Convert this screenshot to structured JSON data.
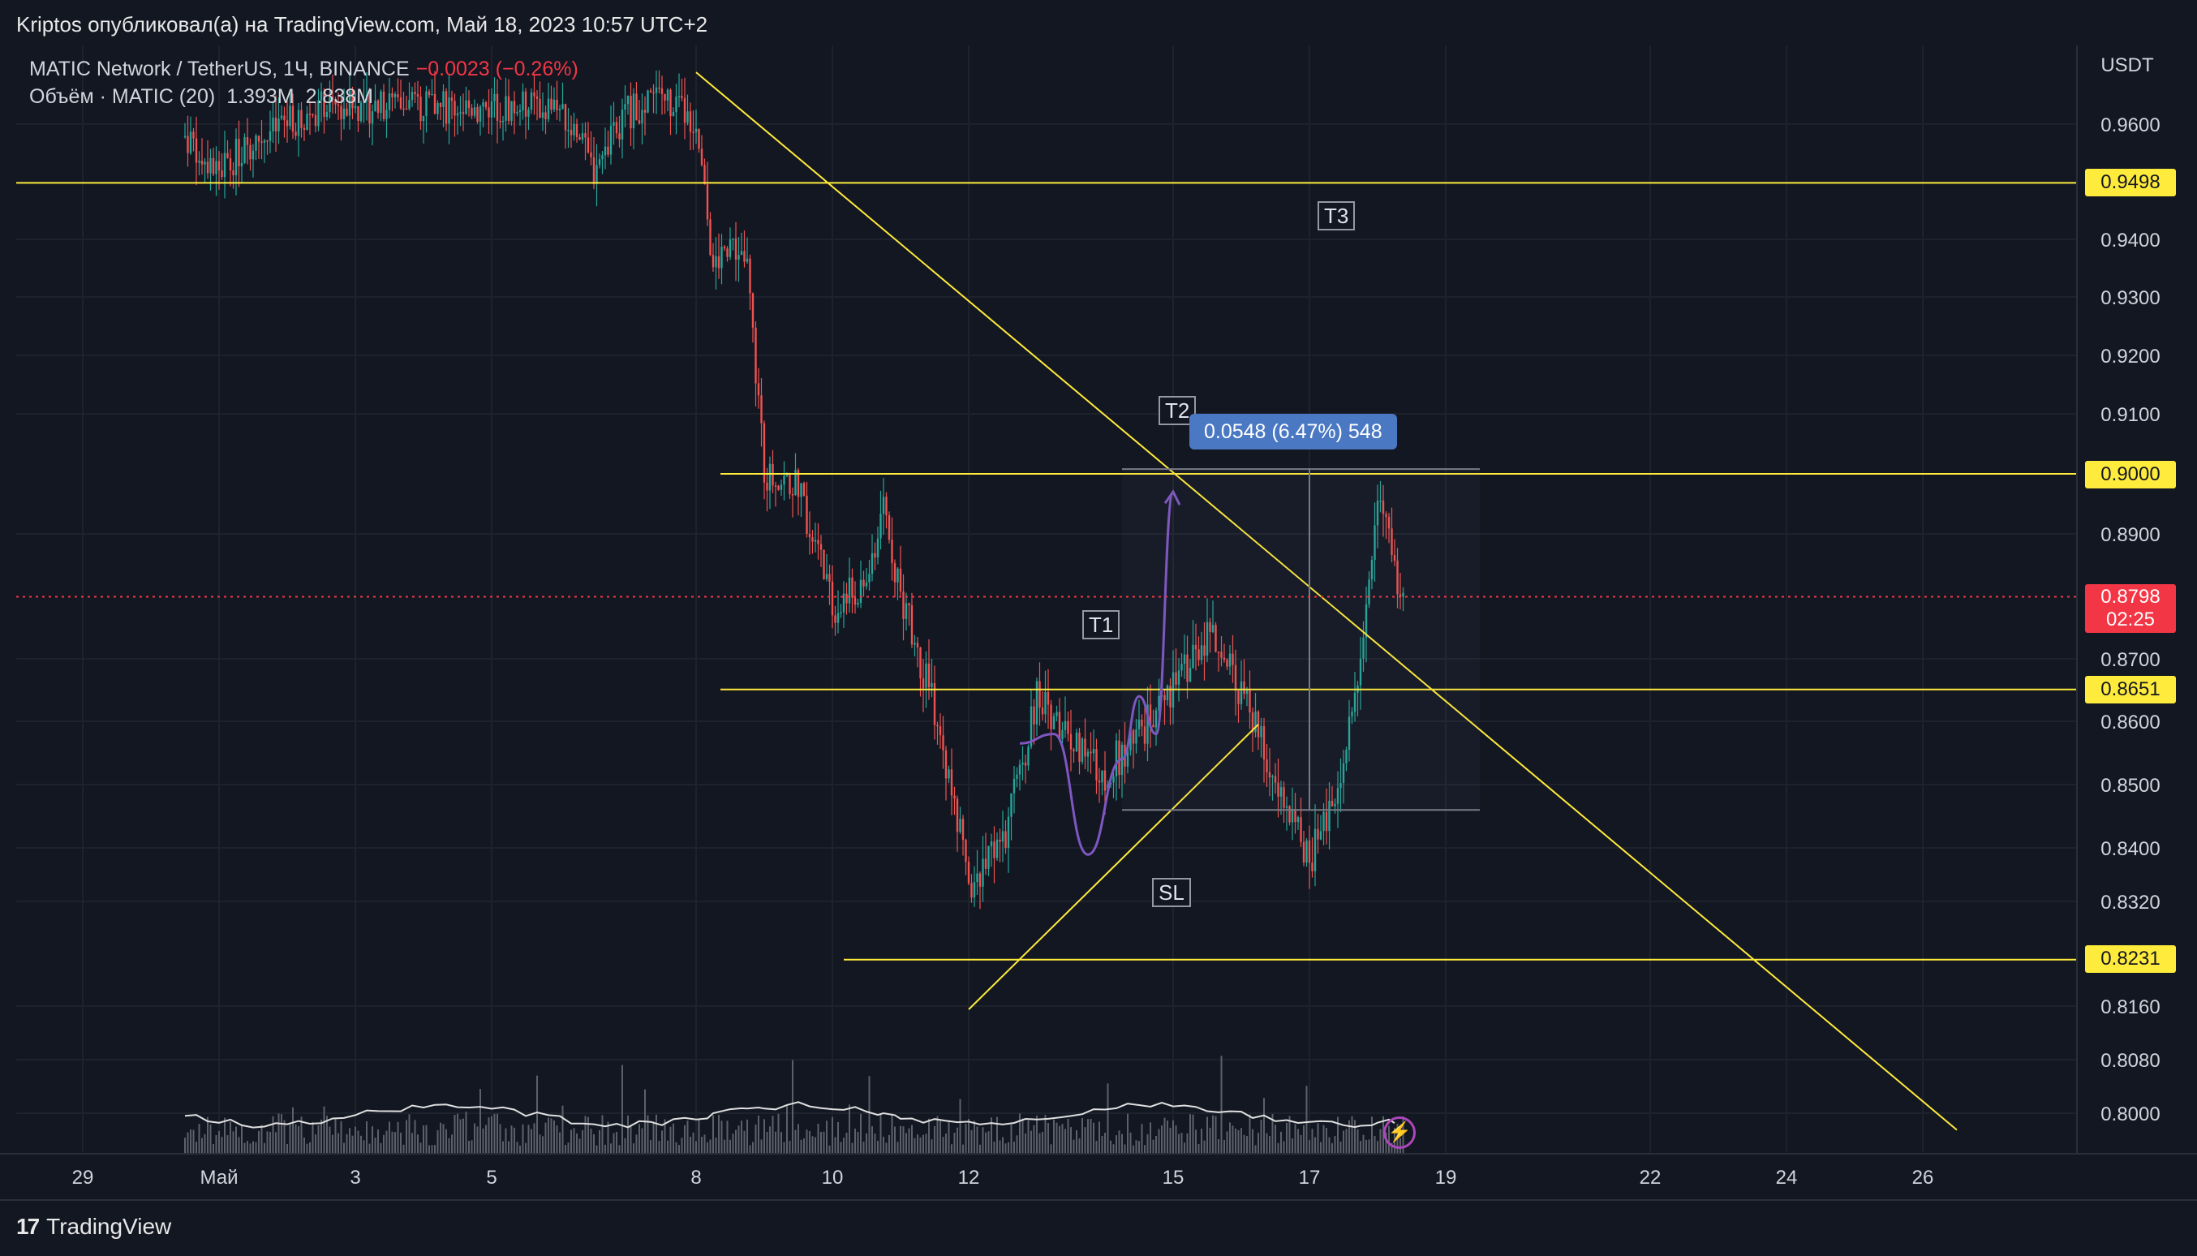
{
  "header": {
    "publisher_line": "Kriptos опубликовал(а) на TradingView.com, Май 18, 2023 10:57 UTC+2"
  },
  "legend": {
    "symbol": "MATIC Network / TetherUS, 1Ч, BINANCE",
    "change": "−0.0023 (−0.26%)",
    "volume_label": "Объём · MATIC (20)",
    "volume_value": "1.393M",
    "volume_ma": "2.838M"
  },
  "price_labels": {
    "l9498": "0.9498",
    "l9000": "0.9000",
    "l8651": "0.8651",
    "l8231": "0.8231",
    "last_price": "0.8798",
    "countdown": "02:25"
  },
  "annotations": {
    "t1": "T1",
    "t2": "T2",
    "t3": "T3",
    "sl": "SL",
    "measure": "0.0548 (6.47%) 548"
  },
  "footer": {
    "brand": "TradingView"
  },
  "colors": {
    "bg": "#131722",
    "grid": "#1e222d",
    "up": "#26a69a",
    "down": "#ef5350",
    "level": "#ffeb3b",
    "last": "#f23645",
    "path": "#7e57c2"
  },
  "icons": {
    "logo": "tradingview-logo-icon",
    "bolt": "lightning-icon"
  },
  "chart_data": {
    "type": "candlestick",
    "axis_unit": "USDT",
    "y_ticks": [
      0.96,
      0.94,
      0.93,
      0.92,
      0.91,
      0.89,
      0.87,
      0.86,
      0.85,
      0.84,
      0.832,
      0.816,
      0.808,
      0.8
    ],
    "y_tick_labels": [
      "0.9600",
      "0.9400",
      "0.9300",
      "0.9200",
      "0.9100",
      "0.8900",
      "0.8700",
      "0.8600",
      "0.8500",
      "0.8400",
      "0.8320",
      "0.8160",
      "0.8080",
      "0.8000"
    ],
    "x_ticks": [
      {
        "label": "29",
        "day": "2023-04-29"
      },
      {
        "label": "Май",
        "day": "2023-05-01"
      },
      {
        "label": "3",
        "day": "2023-05-03"
      },
      {
        "label": "5",
        "day": "2023-05-05"
      },
      {
        "label": "8",
        "day": "2023-05-08"
      },
      {
        "label": "10",
        "day": "2023-05-10"
      },
      {
        "label": "12",
        "day": "2023-05-12"
      },
      {
        "label": "15",
        "day": "2023-05-15"
      },
      {
        "label": "17",
        "day": "2023-05-17"
      },
      {
        "label": "19",
        "day": "2023-05-19"
      },
      {
        "label": "22",
        "day": "2023-05-22"
      },
      {
        "label": "24",
        "day": "2023-05-24"
      },
      {
        "label": "26",
        "day": "2023-05-26"
      }
    ],
    "horizontal_levels": [
      0.9498,
      0.9,
      0.8651,
      0.8231
    ],
    "last_price": 0.8798,
    "price_path": [
      [
        "2023-04-30 12:00",
        0.958
      ],
      [
        "2023-05-01 00:00",
        0.952
      ],
      [
        "2023-05-01 12:00",
        0.957
      ],
      [
        "2023-05-02 00:00",
        0.96
      ],
      [
        "2023-05-02 12:00",
        0.963
      ],
      [
        "2023-05-06 00:00",
        0.963
      ],
      [
        "2023-05-06 12:00",
        0.952
      ],
      [
        "2023-05-07 00:00",
        0.962
      ],
      [
        "2023-05-07 12:00",
        0.965
      ],
      [
        "2023-05-08 00:00",
        0.96
      ],
      [
        "2023-05-08 06:00",
        0.935
      ],
      [
        "2023-05-08 12:00",
        0.94
      ],
      [
        "2023-05-08 18:00",
        0.935
      ],
      [
        "2023-05-09 00:00",
        0.9
      ],
      [
        "2023-05-09 12:00",
        0.898
      ],
      [
        "2023-05-10 00:00",
        0.878
      ],
      [
        "2023-05-10 12:00",
        0.882
      ],
      [
        "2023-05-10 18:00",
        0.895
      ],
      [
        "2023-05-11 00:00",
        0.88
      ],
      [
        "2023-05-11 12:00",
        0.862
      ],
      [
        "2023-05-12 00:00",
        0.835
      ],
      [
        "2023-05-12 12:00",
        0.84
      ],
      [
        "2023-05-13 00:00",
        0.864
      ],
      [
        "2023-05-13 12:00",
        0.858
      ],
      [
        "2023-05-14 00:00",
        0.852
      ],
      [
        "2023-05-14 12:00",
        0.858
      ],
      [
        "2023-05-15 00:00",
        0.865
      ],
      [
        "2023-05-15 12:00",
        0.874
      ],
      [
        "2023-05-16 00:00",
        0.865
      ],
      [
        "2023-05-16 12:00",
        0.85
      ],
      [
        "2023-05-17 00:00",
        0.838
      ],
      [
        "2023-05-17 12:00",
        0.852
      ],
      [
        "2023-05-17 18:00",
        0.87
      ],
      [
        "2023-05-18 00:00",
        0.898
      ],
      [
        "2023-05-18 06:00",
        0.884
      ],
      [
        "2023-05-18 10:00",
        0.8798
      ]
    ],
    "trend_lines": [
      {
        "from": [
          "2023-05-08 00:00",
          0.969
        ],
        "to": [
          "2023-05-26 12:00",
          0.7975
        ]
      },
      {
        "from": [
          "2023-05-12 00:00",
          0.8155
        ],
        "to": [
          "2023-05-16 06:00",
          0.8595
        ]
      }
    ],
    "projection_path": [
      [
        "2023-05-12 18:00",
        0.8565
      ],
      [
        "2023-05-13 06:00",
        0.858
      ],
      [
        "2023-05-13 18:00",
        0.839
      ],
      [
        "2023-05-14 06:00",
        0.854
      ],
      [
        "2023-05-14 12:00",
        0.864
      ],
      [
        "2023-05-14 18:00",
        0.858
      ],
      [
        "2023-05-15 00:00",
        0.897
      ]
    ],
    "measure_range": {
      "from": [
        "2023-05-14 06:00",
        0.846
      ],
      "to": [
        "2023-05-19 12:00",
        0.9008
      ],
      "change": 0.0548,
      "percent": 6.47
    },
    "volume_ma_level": "2.838M",
    "volume_last": "1.393M"
  }
}
